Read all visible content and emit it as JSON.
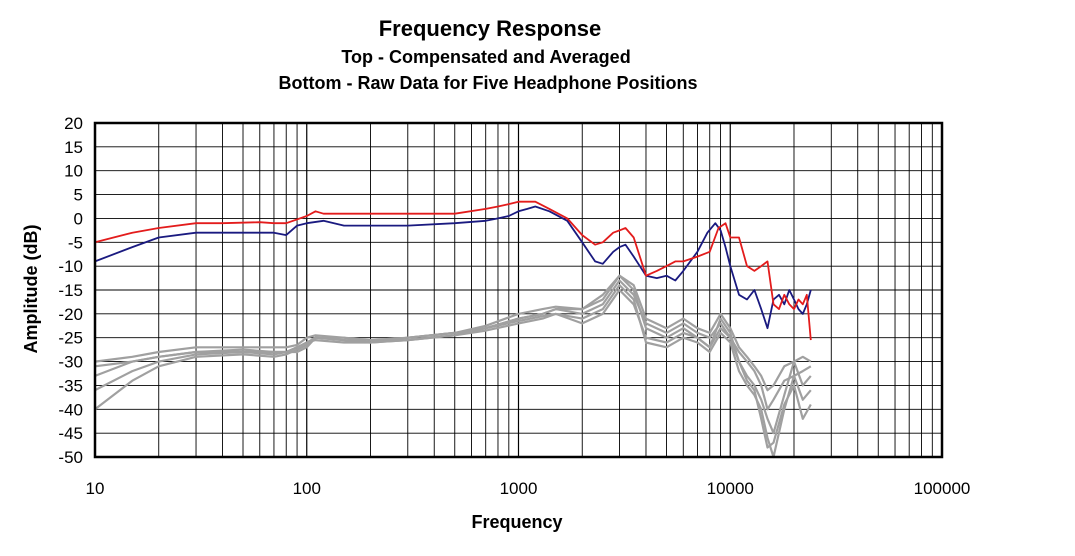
{
  "chart_data": {
    "type": "line",
    "title": "Frequency Response",
    "subtitle": [
      "Top -  Compensated and Averaged",
      "Bottom - Raw Data for Five Headphone Positions"
    ],
    "xlabel": "Frequency",
    "ylabel": "Amplitude (dB)",
    "xscale": "log",
    "xlim": [
      10,
      100000
    ],
    "ylim": [
      -50,
      20
    ],
    "xticks": [
      10,
      100,
      1000,
      10000,
      100000
    ],
    "xtick_labels": [
      "10",
      "100",
      "1000",
      "10000",
      "100000"
    ],
    "yticks": [
      20,
      15,
      10,
      5,
      0,
      -5,
      -10,
      -15,
      -20,
      -25,
      -30,
      -35,
      -40,
      -45,
      -50
    ],
    "grid": true,
    "legend": "none",
    "colors": {
      "red": "#e31c1c",
      "navy": "#1a1a80",
      "gray": "#a0a0a0"
    },
    "series": [
      {
        "color": "red",
        "x": [
          10,
          15,
          20,
          30,
          40,
          60,
          70,
          80,
          100,
          110,
          120,
          150,
          200,
          300,
          500,
          700,
          800,
          900,
          1000,
          1200,
          1400,
          1700,
          2000,
          2300,
          2500,
          2800,
          3000,
          3200,
          3500,
          4000,
          4500,
          5000,
          5500,
          6000,
          7000,
          8000,
          8800,
          9500,
          10000,
          11000,
          12000,
          13000,
          14000,
          15000,
          16000,
          17000,
          18000,
          19000,
          20000,
          21000,
          22000,
          23000,
          24000
        ],
        "values": [
          -5,
          -3,
          -2,
          -1,
          -1,
          -0.8,
          -1,
          -1,
          0.5,
          1.5,
          1,
          1,
          1,
          1,
          1,
          2,
          2.5,
          3,
          3.5,
          3.5,
          2,
          0,
          -3.5,
          -5.5,
          -5,
          -3,
          -2.5,
          -2,
          -4,
          -12,
          -11,
          -10,
          -9,
          -9,
          -8,
          -7,
          -2,
          -1,
          -4,
          -4,
          -10,
          -11,
          -10,
          -9,
          -18,
          -19,
          -16,
          -18,
          -19,
          -17,
          -18,
          -16,
          -25.5
        ]
      },
      {
        "color": "navy",
        "x": [
          10,
          15,
          20,
          30,
          40,
          60,
          70,
          80,
          90,
          100,
          120,
          150,
          200,
          300,
          500,
          700,
          800,
          900,
          1000,
          1100,
          1200,
          1400,
          1700,
          2000,
          2300,
          2500,
          2800,
          3000,
          3200,
          3500,
          4000,
          4500,
          5000,
          5500,
          6000,
          7000,
          7800,
          8500,
          9000,
          9500,
          10000,
          11000,
          12000,
          13000,
          14000,
          15000,
          16000,
          17000,
          18000,
          19000,
          20000,
          21000,
          22000,
          23000,
          24000
        ],
        "values": [
          -9,
          -6,
          -4,
          -3,
          -3,
          -3,
          -3,
          -3.5,
          -1.5,
          -1,
          -0.5,
          -1.5,
          -1.5,
          -1.5,
          -1,
          -0.5,
          0,
          0.5,
          1.5,
          2,
          2.5,
          1.5,
          -0.5,
          -5,
          -9,
          -9.5,
          -7,
          -6,
          -5.5,
          -8,
          -12,
          -12.5,
          -12,
          -13,
          -11,
          -7,
          -3,
          -1,
          -2.5,
          -6,
          -10,
          -16,
          -17,
          -15,
          -19,
          -23,
          -17,
          -16,
          -18,
          -15,
          -17,
          -19,
          -20,
          -18,
          -15
        ]
      },
      {
        "color": "gray",
        "x": [
          10,
          15,
          20,
          30,
          50,
          70,
          80,
          90,
          100,
          110,
          150,
          200,
          300,
          500,
          700,
          1000,
          1300,
          1500,
          2000,
          2500,
          3000,
          3500,
          4000,
          5000,
          6000,
          7000,
          8000,
          9000,
          10000,
          11000,
          12000,
          13000,
          14000,
          15000,
          16000,
          18000,
          20000,
          22000,
          24000
        ],
        "values": [
          -31,
          -30,
          -29,
          -28,
          -28,
          -28,
          -28,
          -28,
          -27,
          -25,
          -25,
          -26,
          -25,
          -24,
          -23,
          -21,
          -20,
          -19,
          -20,
          -18,
          -13,
          -16,
          -22,
          -24,
          -22,
          -24,
          -25,
          -22,
          -25,
          -28,
          -30,
          -32,
          -35,
          -40,
          -38,
          -34,
          -33,
          -32,
          -31
        ]
      },
      {
        "color": "gray",
        "x": [
          10,
          15,
          20,
          30,
          50,
          70,
          80,
          90,
          100,
          110,
          150,
          200,
          300,
          500,
          700,
          1000,
          1300,
          1500,
          2000,
          2500,
          3000,
          3500,
          4000,
          5000,
          6000,
          7000,
          8000,
          9000,
          10000,
          11000,
          12000,
          13000,
          14000,
          15000,
          16000,
          18000,
          20000,
          22000,
          24000
        ],
        "values": [
          -33,
          -30,
          -29,
          -28,
          -27.5,
          -28,
          -28,
          -27,
          -26,
          -25,
          -25.5,
          -26,
          -25,
          -24,
          -23,
          -21,
          -20,
          -19,
          -19,
          -16,
          -12,
          -15,
          -23,
          -25,
          -23,
          -25,
          -27,
          -21,
          -24,
          -30,
          -33,
          -35,
          -38,
          -42,
          -45,
          -37,
          -30,
          -35,
          -33
        ]
      },
      {
        "color": "gray",
        "x": [
          10,
          15,
          20,
          30,
          50,
          70,
          80,
          90,
          100,
          110,
          150,
          200,
          300,
          500,
          700,
          1000,
          1300,
          1500,
          2000,
          2500,
          3000,
          3500,
          4000,
          5000,
          6000,
          7000,
          8000,
          9000,
          10000,
          11000,
          12000,
          13000,
          14000,
          15000,
          16000,
          18000,
          20000,
          22000,
          24000
        ],
        "values": [
          -36,
          -32,
          -30,
          -28.5,
          -28,
          -28.5,
          -28,
          -27,
          -26,
          -25.5,
          -26,
          -26,
          -25.5,
          -24.5,
          -23.5,
          -22,
          -21,
          -20,
          -21,
          -19,
          -14,
          -17,
          -26,
          -27,
          -25,
          -26,
          -28,
          -24,
          -26,
          -32,
          -35,
          -37,
          -40,
          -46,
          -50,
          -40,
          -33,
          -38,
          -36
        ]
      },
      {
        "color": "gray",
        "x": [
          10,
          15,
          20,
          30,
          50,
          70,
          80,
          90,
          100,
          110,
          150,
          200,
          300,
          500,
          700,
          1000,
          1300,
          1500,
          2000,
          2500,
          3000,
          3500,
          4000,
          5000,
          6000,
          7000,
          8000,
          9000,
          10000,
          11000,
          12000,
          13000,
          14000,
          15000,
          16000,
          18000,
          20000,
          22000,
          24000
        ],
        "values": [
          -30,
          -29,
          -28,
          -27,
          -27,
          -27,
          -27,
          -26.5,
          -25,
          -24.5,
          -25,
          -25.5,
          -25,
          -24,
          -22.5,
          -20,
          -19,
          -18.5,
          -19,
          -17,
          -12,
          -14,
          -21,
          -23,
          -21,
          -23,
          -24,
          -20,
          -23,
          -27,
          -29,
          -31,
          -33,
          -36,
          -35,
          -31,
          -30,
          -29,
          -30
        ]
      },
      {
        "color": "gray",
        "x": [
          10,
          15,
          20,
          30,
          50,
          70,
          80,
          90,
          100,
          110,
          150,
          200,
          300,
          500,
          700,
          1000,
          1300,
          1500,
          2000,
          2500,
          3000,
          3500,
          4000,
          5000,
          6000,
          7000,
          8000,
          9000,
          10000,
          11000,
          12000,
          13000,
          14000,
          15000,
          16000,
          18000,
          20000,
          22000,
          24000
        ],
        "values": [
          -40,
          -34,
          -31,
          -29,
          -28.5,
          -29,
          -28.5,
          -27.5,
          -26.5,
          -25,
          -25.5,
          -26,
          -25.5,
          -24.5,
          -23,
          -21.5,
          -20.5,
          -20,
          -22,
          -20,
          -15,
          -18,
          -25,
          -26,
          -24,
          -25,
          -27,
          -23,
          -25,
          -30,
          -34,
          -36,
          -42,
          -48,
          -47,
          -39,
          -35,
          -42,
          -39
        ]
      }
    ]
  }
}
